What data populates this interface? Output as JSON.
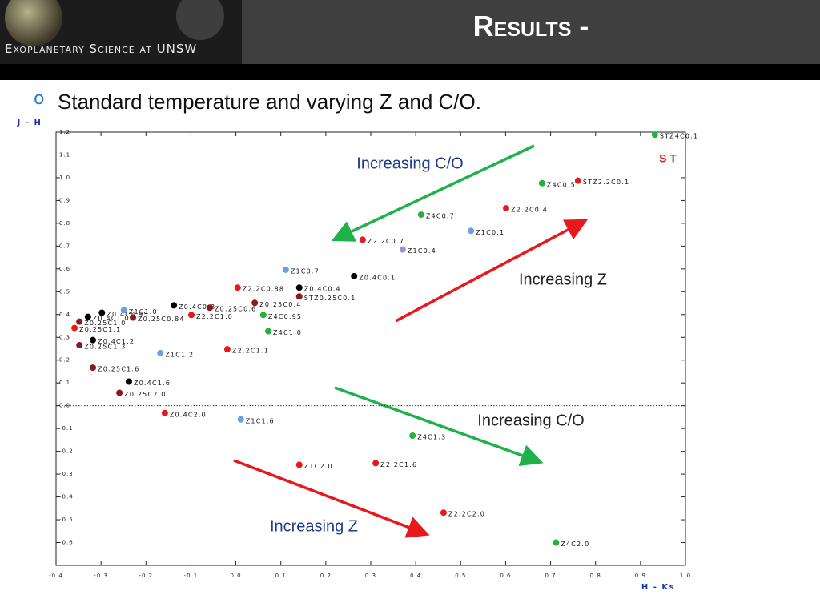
{
  "header": {
    "logo_text": "Exoplanetary Science at UNSW",
    "title": "Results -"
  },
  "bullet": "Standard temperature  and varying Z and C/O.",
  "chart_data": {
    "type": "scatter",
    "y_label": "J - H",
    "x_label": "H - Ks",
    "xlim": [
      -0.4,
      1.0
    ],
    "ylim": [
      -0.7,
      1.2
    ],
    "xticks": [
      -0.4,
      -0.3,
      -0.2,
      -0.1,
      {
        "value": 0,
        "label": "0.0"
      },
      0.1,
      0.2,
      0.3,
      0.4,
      0.5,
      0.6,
      0.7,
      0.8,
      0.9,
      {
        "value": 1,
        "label": "1.0"
      }
    ],
    "yticks": [
      -0.6,
      -0.5,
      -0.4,
      -0.3,
      -0.2,
      -0.1,
      {
        "value": 0,
        "label": "0.0"
      },
      0.1,
      0.2,
      0.3,
      0.4,
      0.5,
      0.6,
      0.7,
      0.8,
      0.9,
      {
        "value": 1,
        "label": "1.0"
      },
      1.1,
      1.2
    ],
    "zero_line": true,
    "points": [
      {
        "label": "STZ4C0.1",
        "x": 0.932,
        "y": 1.189,
        "color": "#22b33a"
      },
      {
        "label": "Z4C0.5",
        "x": 0.681,
        "y": 0.976,
        "color": "#22b33a"
      },
      {
        "label": "STZ2.2C0.1",
        "x": 0.761,
        "y": 0.987,
        "color": "#e8191c"
      },
      {
        "label": "Z2.2C0.4",
        "x": 0.601,
        "y": 0.866,
        "color": "#e8191c"
      },
      {
        "label": "Z4C0.7",
        "x": 0.412,
        "y": 0.838,
        "color": "#22b33a"
      },
      {
        "label": "Z1C0.1",
        "x": 0.523,
        "y": 0.767,
        "color": "#6aa1e6"
      },
      {
        "label": "Z2.2C0.7",
        "x": 0.282,
        "y": 0.728,
        "color": "#e8191c"
      },
      {
        "label": "Z1C0.4",
        "x": 0.371,
        "y": 0.685,
        "color": "#9b8fdc"
      },
      {
        "label": "Z1C0.7",
        "x": 0.111,
        "y": 0.596,
        "color": "#6aa1e6"
      },
      {
        "label": "Z0.4C0.1",
        "x": 0.263,
        "y": 0.568,
        "color": "#000000"
      },
      {
        "label": "Z2.2C0.88",
        "x": 0.004,
        "y": 0.518,
        "color": "#e8191c"
      },
      {
        "label": "Z0.4C0.4",
        "x": 0.141,
        "y": 0.518,
        "color": "#000000"
      },
      {
        "label": "STZ0.25C0.1",
        "x": 0.141,
        "y": 0.479,
        "color": "#8b1a1a"
      },
      {
        "label": "Z0.25C0.4",
        "x": 0.042,
        "y": 0.451,
        "color": "#8b1a1a"
      },
      {
        "label": "Z0.4C0.8",
        "x": -0.138,
        "y": 0.44,
        "color": "#000000"
      },
      {
        "label": "Z0.25C0.6",
        "x": -0.058,
        "y": 0.43,
        "color": "#8b1a1a"
      },
      {
        "label": "Z4C0.95",
        "x": 0.061,
        "y": 0.398,
        "color": "#22b33a"
      },
      {
        "label": "Z2.2C1.0",
        "x": -0.099,
        "y": 0.398,
        "color": "#e8191c"
      },
      {
        "label": "Z0.4C0.95",
        "x": -0.298,
        "y": 0.408,
        "color": "#000000"
      },
      {
        "label": "Z1C1.0",
        "x": -0.249,
        "y": 0.419,
        "color": "#6aa1e6"
      },
      {
        "label": "Z0.4C1.0",
        "x": -0.329,
        "y": 0.39,
        "color": "#000000"
      },
      {
        "label": "Z0.25C0.84",
        "x": -0.229,
        "y": 0.387,
        "color": "#8b1a1a"
      },
      {
        "label": "Z0.25C1.0",
        "x": -0.348,
        "y": 0.369,
        "color": "#8b1a1a"
      },
      {
        "label": "Z0.25C1.1",
        "x": -0.359,
        "y": 0.341,
        "color": "#e8191c"
      },
      {
        "label": "Z4C1.0",
        "x": 0.072,
        "y": 0.327,
        "color": "#22b33a"
      },
      {
        "label": "Z0.4C1.2",
        "x": -0.318,
        "y": 0.288,
        "color": "#000000"
      },
      {
        "label": "Z0.25C1.3",
        "x": -0.348,
        "y": 0.266,
        "color": "#8b1a1a"
      },
      {
        "label": "Z2.2C1.1",
        "x": -0.019,
        "y": 0.248,
        "color": "#e8191c"
      },
      {
        "label": "Z1C1.2",
        "x": -0.168,
        "y": 0.231,
        "color": "#6aa1e6"
      },
      {
        "label": "Z0.25C1.6",
        "x": -0.318,
        "y": 0.167,
        "color": "#8b1a1a"
      },
      {
        "label": "Z0.4C1.6",
        "x": -0.238,
        "y": 0.106,
        "color": "#000000"
      },
      {
        "label": "Z0.25C2.0",
        "x": -0.259,
        "y": 0.057,
        "color": "#8b1a1a"
      },
      {
        "label": "Z0.4C2.0",
        "x": -0.158,
        "y": -0.032,
        "color": "#e8191c"
      },
      {
        "label": "Z1C1.6",
        "x": 0.011,
        "y": -0.06,
        "color": "#6aa1e6"
      },
      {
        "label": "Z4C1.3",
        "x": 0.393,
        "y": -0.131,
        "color": "#22b33a"
      },
      {
        "label": "Z1C2.0",
        "x": 0.141,
        "y": -0.259,
        "color": "#e8191c"
      },
      {
        "label": "Z2.2C1.6",
        "x": 0.311,
        "y": -0.252,
        "color": "#e8191c"
      },
      {
        "label": "Z2.2C2.0",
        "x": 0.462,
        "y": -0.469,
        "color": "#e8191c"
      },
      {
        "label": "Z4C2.0",
        "x": 0.712,
        "y": -0.6,
        "color": "#22b33a"
      }
    ],
    "annotations": [
      "Increasing C/O",
      "Increasing Z",
      "Increasing C/O",
      "Increasing Z",
      "S T"
    ]
  }
}
